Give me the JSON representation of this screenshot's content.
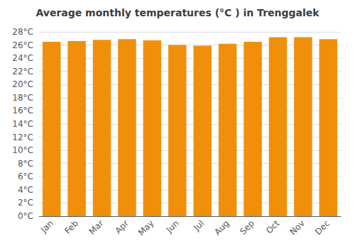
{
  "chart_data": {
    "type": "bar",
    "title": "Average monthly temperatures (°C ) in Trenggalek",
    "categories": [
      "Jan",
      "Feb",
      "Mar",
      "Apr",
      "May",
      "Jun",
      "Jul",
      "Aug",
      "Sep",
      "Oct",
      "Nov",
      "Dec"
    ],
    "values": [
      26.5,
      26.6,
      26.8,
      26.9,
      26.7,
      26.0,
      25.9,
      26.2,
      26.5,
      27.2,
      27.2,
      26.9
    ],
    "color": "#F0900A",
    "ylim": [
      0,
      28
    ],
    "yticks": [
      {
        "value": 0,
        "label": "0°C"
      },
      {
        "value": 2,
        "label": "2°C"
      },
      {
        "value": 4,
        "label": "4°C"
      },
      {
        "value": 6,
        "label": "6°C"
      },
      {
        "value": 8,
        "label": "8°C"
      },
      {
        "value": 10,
        "label": "10°C"
      },
      {
        "value": 12,
        "label": "12°C"
      },
      {
        "value": 14,
        "label": "14°C"
      },
      {
        "value": 16,
        "label": "16°C"
      },
      {
        "value": 18,
        "label": "18°C"
      },
      {
        "value": 20,
        "label": "20°C"
      },
      {
        "value": 22,
        "label": "22°C"
      },
      {
        "value": 24,
        "label": "24°C"
      },
      {
        "value": 26,
        "label": "26°C"
      },
      {
        "value": 28,
        "label": "28°C"
      }
    ],
    "grid": true
  }
}
